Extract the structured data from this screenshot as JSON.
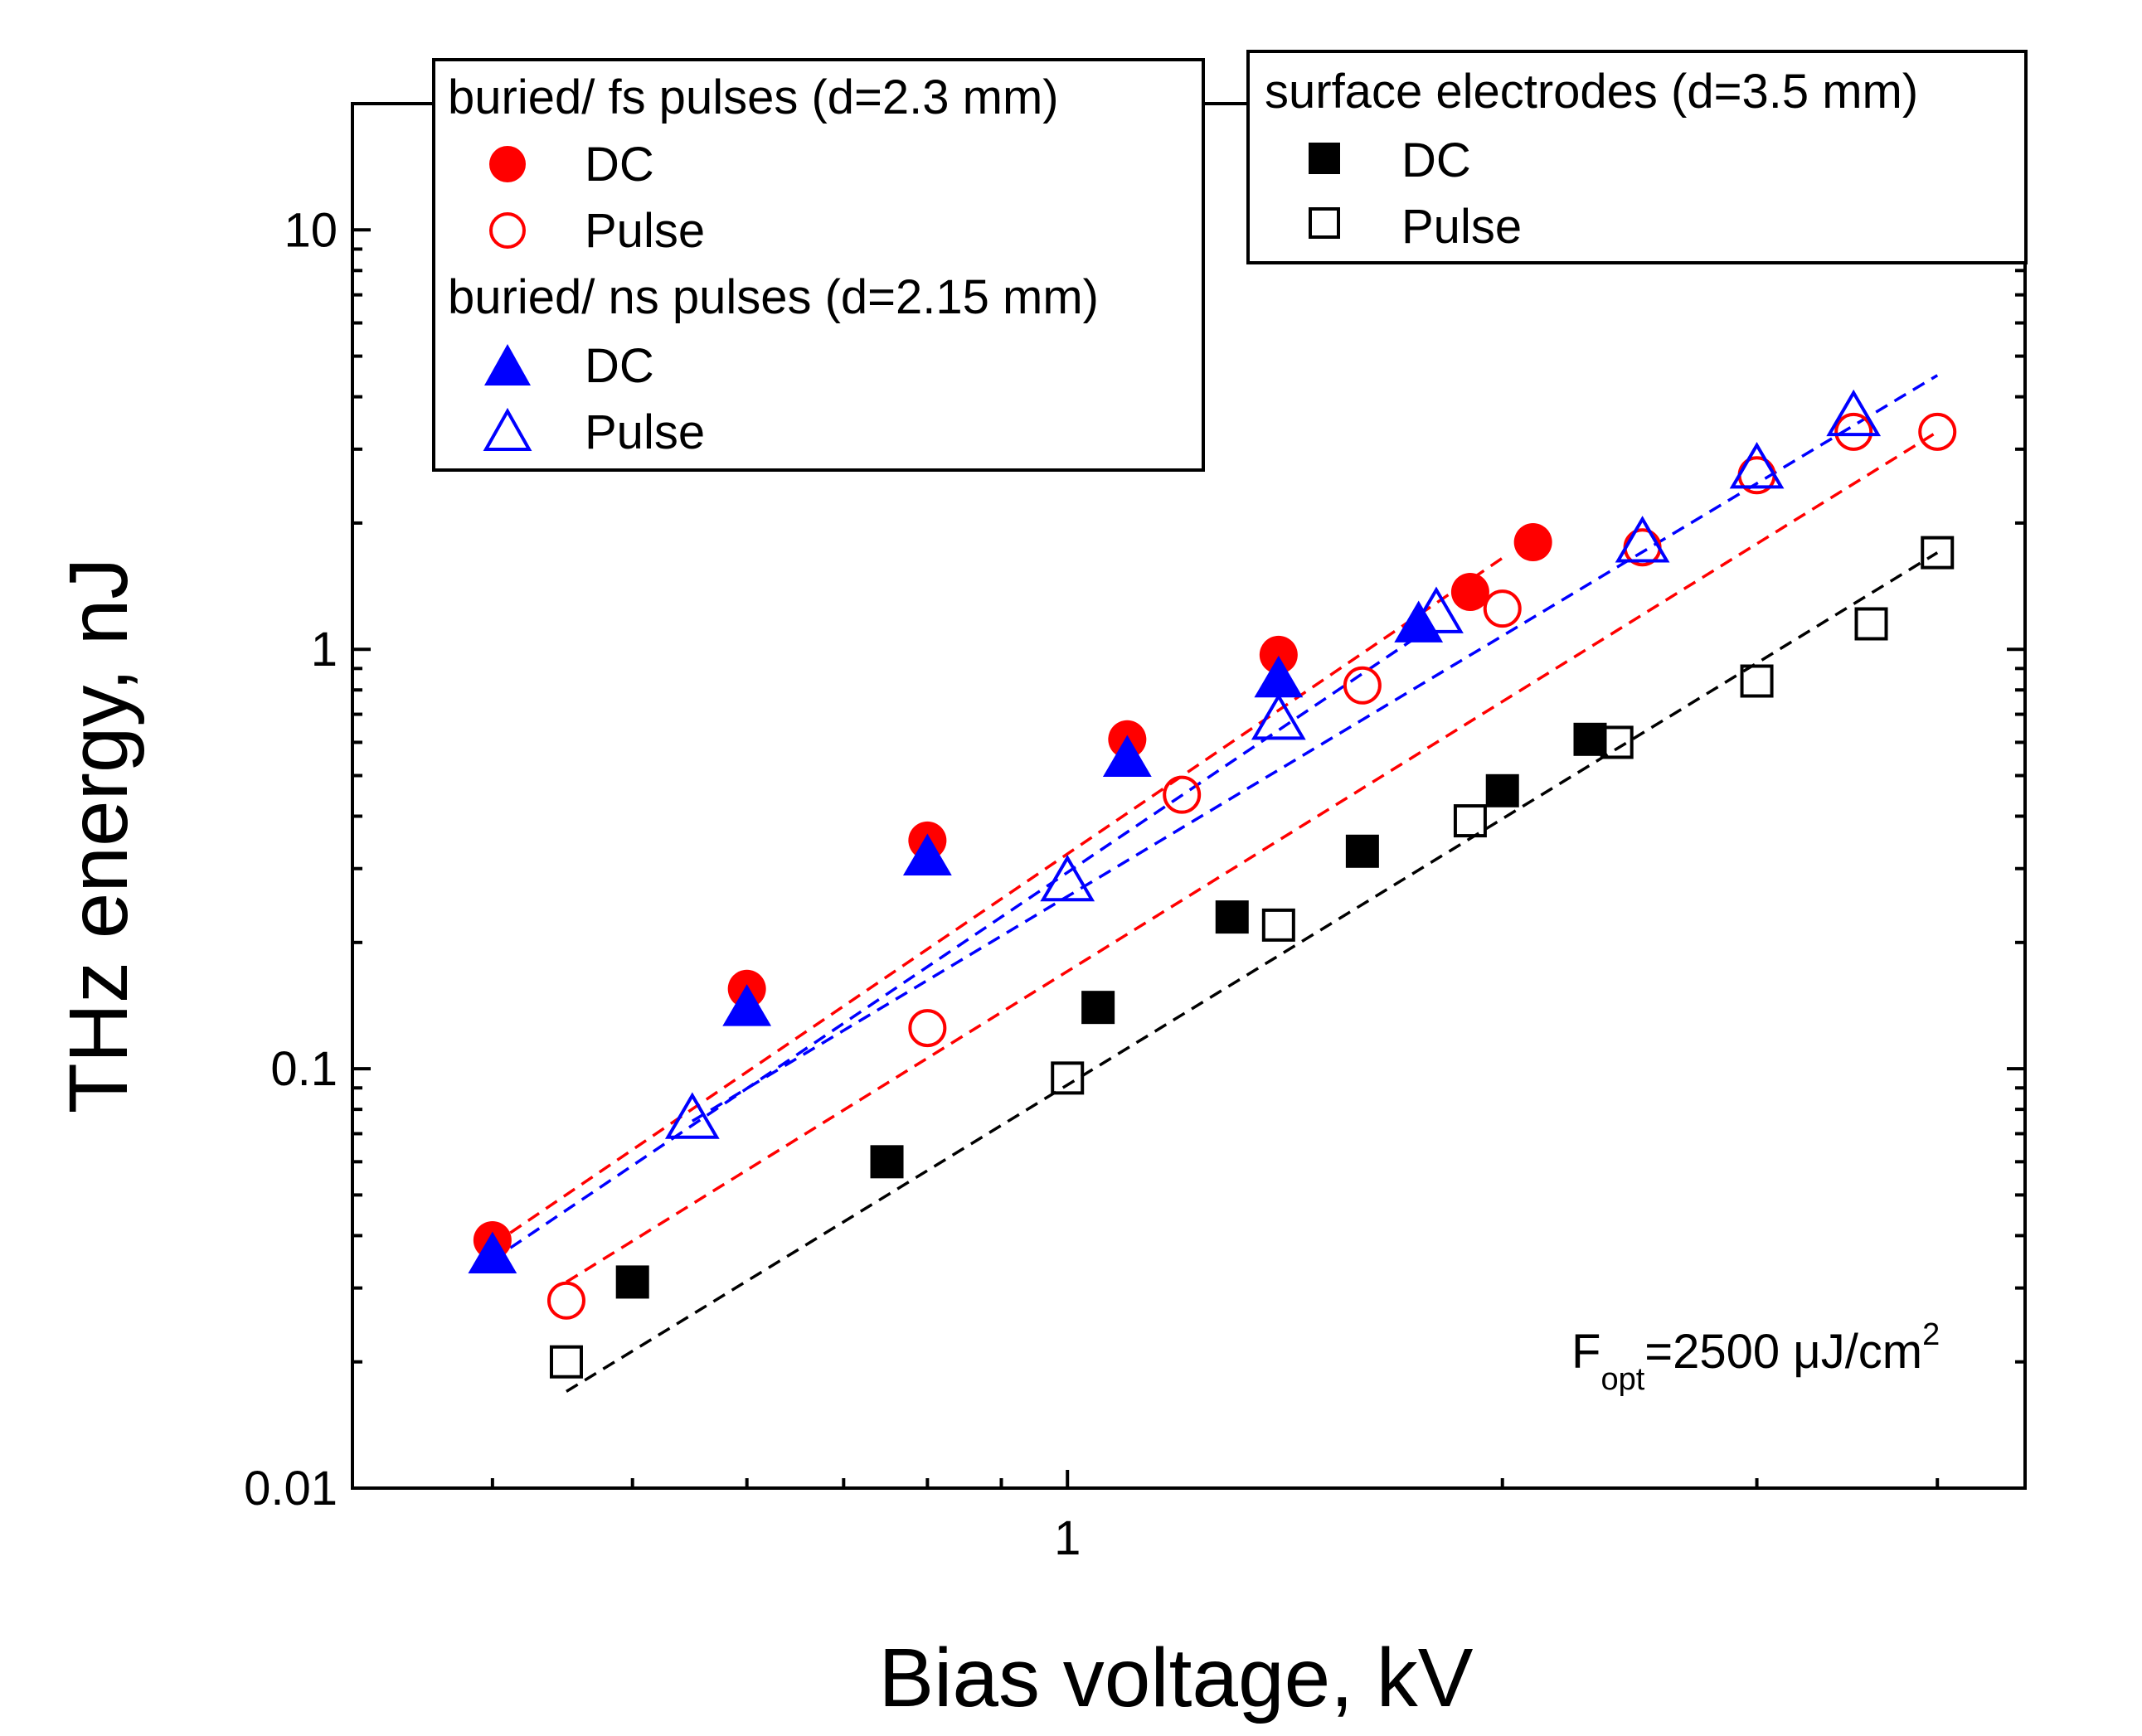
{
  "chart_data": {
    "type": "scatter",
    "title": "",
    "xlabel": "Bias voltage, kV",
    "ylabel": "THz energy, nJ",
    "xscale": "log",
    "yscale": "log",
    "xlim": [
      0.32,
      4.6
    ],
    "ylim": [
      0.01,
      20
    ],
    "x_tick_labels": [
      {
        "value": 1,
        "label": "1"
      }
    ],
    "y_tick_labels": [
      {
        "value": 0.01,
        "label": "0.01"
      },
      {
        "value": 0.1,
        "label": "0.1"
      },
      {
        "value": 1,
        "label": "1"
      },
      {
        "value": 10,
        "label": "10"
      }
    ],
    "annotation": {
      "base": "F",
      "sub": "opt",
      "main": "=2500 μJ/cm",
      "sup": "2"
    },
    "legend_groups": [
      {
        "title": "buried/ fs pulses (d=2.3 mm)",
        "placement": "top-left",
        "entries": [
          0,
          1
        ]
      },
      {
        "title": "buried/ ns pulses (d=2.15 mm)",
        "placement": "top-left",
        "entries": [
          2,
          3
        ]
      },
      {
        "title": "surface electrodes (d=3.5 mm)",
        "placement": "top-right",
        "entries": [
          4,
          5
        ]
      }
    ],
    "series": [
      {
        "name": "DC",
        "group": "buried/ fs pulses (d=2.3 mm)",
        "marker": "circle",
        "filled": true,
        "color": "#ff0000",
        "x": [
          0.4,
          0.6,
          0.8,
          1.1,
          1.4,
          1.9,
          2.1
        ],
        "y": [
          0.039,
          0.155,
          0.35,
          0.61,
          0.97,
          1.37,
          1.8
        ],
        "fit": {
          "x": [
            0.4,
            2.0
          ],
          "y": [
            0.038,
            1.65
          ]
        }
      },
      {
        "name": "Pulse",
        "group": "buried/ fs pulses (d=2.3 mm)",
        "marker": "circle",
        "filled": false,
        "color": "#ff0000",
        "x": [
          0.45,
          0.8,
          1.2,
          1.6,
          2.0,
          2.5,
          3.0,
          3.5,
          4.0
        ],
        "y": [
          0.028,
          0.125,
          0.45,
          0.82,
          1.25,
          1.75,
          2.6,
          3.3,
          3.3
        ],
        "fit": {
          "x": [
            0.45,
            4.0
          ],
          "y": [
            0.031,
            3.3
          ]
        }
      },
      {
        "name": "DC",
        "group": "buried/ ns pulses (d=2.15 mm)",
        "marker": "triangle",
        "filled": true,
        "color": "#0000ff",
        "x": [
          0.4,
          0.6,
          0.8,
          1.1,
          1.4,
          1.75
        ],
        "y": [
          0.036,
          0.14,
          0.32,
          0.55,
          0.85,
          1.15
        ],
        "fit": {
          "x": [
            0.4,
            1.8
          ],
          "y": [
            0.035,
            1.15
          ]
        }
      },
      {
        "name": "Pulse",
        "group": "buried/ ns pulses (d=2.15 mm)",
        "marker": "triangle",
        "filled": false,
        "color": "#0000ff",
        "x": [
          0.55,
          1.0,
          1.4,
          1.8,
          2.5,
          3.0,
          3.5
        ],
        "y": [
          0.076,
          0.28,
          0.68,
          1.22,
          1.8,
          2.7,
          3.6
        ],
        "fit": {
          "x": [
            0.55,
            4.0
          ],
          "y": [
            0.075,
            4.5
          ]
        }
      },
      {
        "name": "DC",
        "group": "surface electrodes (d=3.5 mm)",
        "marker": "square",
        "filled": true,
        "color": "#000000",
        "x": [
          0.5,
          0.75,
          1.05,
          1.3,
          1.6,
          2.0,
          2.3
        ],
        "y": [
          0.031,
          0.06,
          0.14,
          0.23,
          0.33,
          0.46,
          0.61
        ],
        "fit": {
          "x": [
            0.45,
            4.0
          ],
          "y": [
            0.017,
            1.7
          ]
        }
      },
      {
        "name": "Pulse",
        "group": "surface electrodes (d=3.5 mm)",
        "marker": "square",
        "filled": false,
        "color": "#000000",
        "x": [
          0.45,
          1.0,
          1.4,
          1.9,
          2.4,
          3.0,
          3.6,
          4.0
        ],
        "y": [
          0.02,
          0.095,
          0.22,
          0.39,
          0.6,
          0.84,
          1.15,
          1.7
        ]
      }
    ]
  }
}
